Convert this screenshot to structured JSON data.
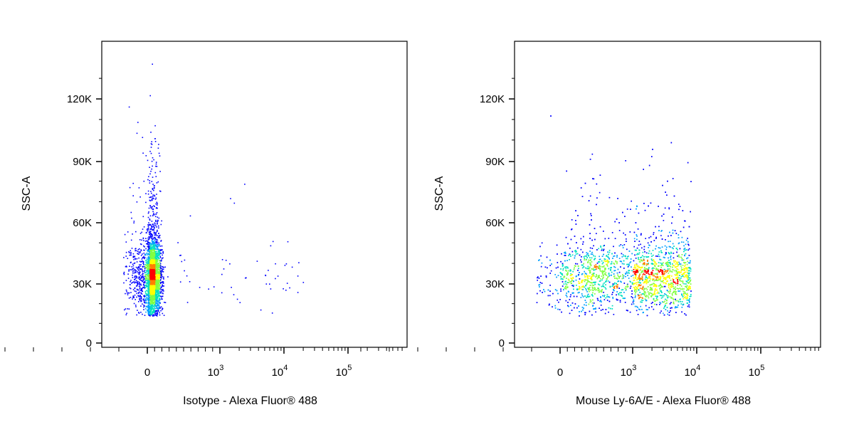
{
  "chart_data": [
    {
      "type": "scatter",
      "subtype": "flow-cytometry density dot plot",
      "xlabel": "Isotype - Alexa Fluor® 488",
      "ylabel": "SSC-A",
      "x_scale": "biexponential",
      "x_ticks": [
        "0",
        "10^3",
        "10^4",
        "10^5"
      ],
      "y_ticks": [
        "0",
        "30K",
        "60K",
        "90K",
        "120K"
      ],
      "ylim": [
        0,
        140000
      ],
      "density_colors": [
        "#0000ff",
        "#00a0ff",
        "#00e0c0",
        "#80ff40",
        "#ffff00",
        "#ff8000",
        "#ff0000"
      ],
      "populations": [
        {
          "x_center": 60,
          "x_spread": 120,
          "y_center": 33000,
          "y_spread": 9000,
          "count": 3200
        },
        {
          "x_center": 900,
          "x_spread": 1600,
          "y_center": 34000,
          "y_spread": 7000,
          "count": 55
        }
      ]
    },
    {
      "type": "scatter",
      "subtype": "flow-cytometry density dot plot",
      "xlabel": "Mouse Ly-6A/E - Alexa Fluor® 488",
      "ylabel": "SSC-A",
      "x_scale": "biexponential",
      "x_ticks": [
        "0",
        "10^3",
        "10^4",
        "10^5"
      ],
      "y_ticks": [
        "0",
        "30K",
        "60K",
        "90K",
        "120K"
      ],
      "ylim": [
        0,
        140000
      ],
      "density_colors": [
        "#0000ff",
        "#00a0ff",
        "#00e0c0",
        "#80ff40",
        "#ffff00",
        "#ff8000",
        "#ff0000"
      ],
      "populations": [
        {
          "x_min": -200,
          "x_max": 8000,
          "y_center": 33000,
          "y_spread": 8000,
          "count": 4200
        }
      ]
    }
  ]
}
